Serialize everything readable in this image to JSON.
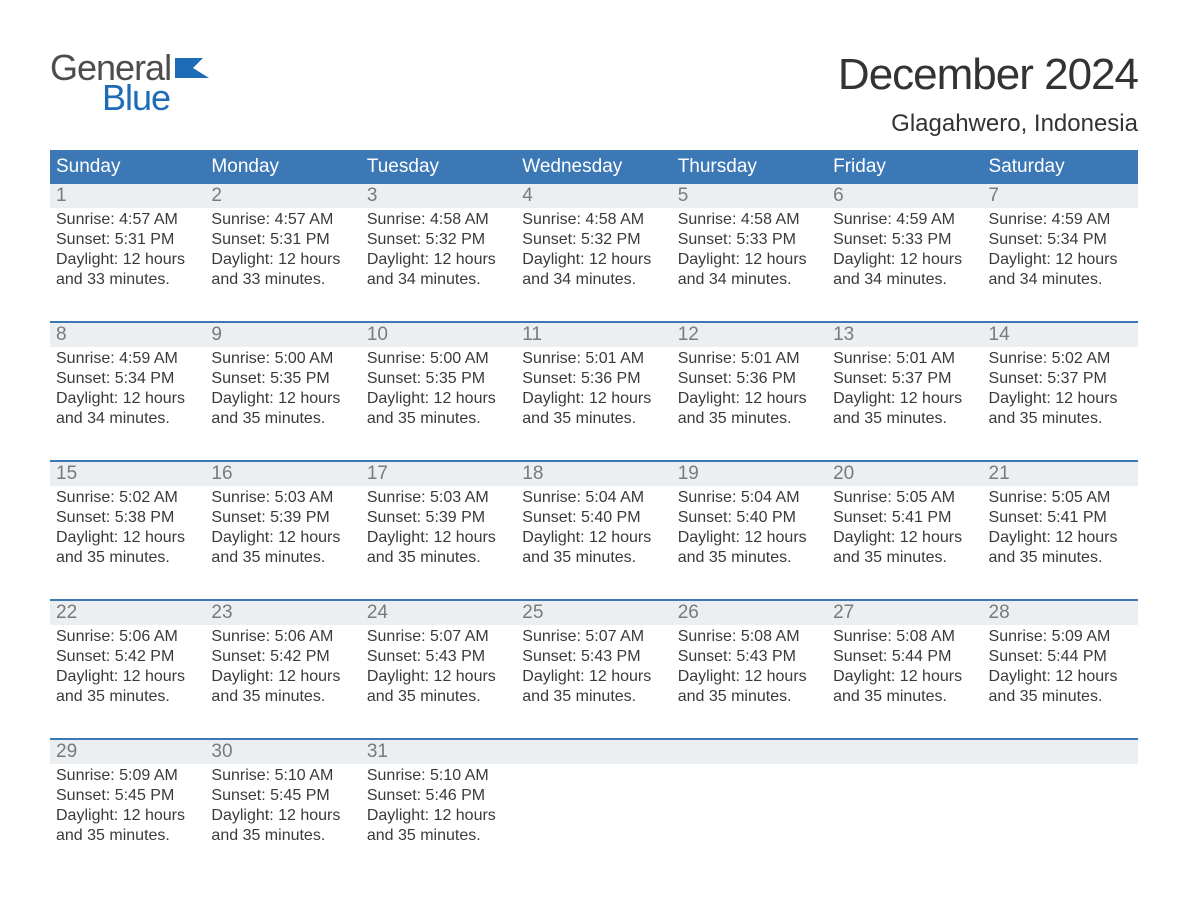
{
  "logo": {
    "text_general": "General",
    "text_blue": "Blue",
    "flag_color": "#1e6bb8",
    "general_color": "#4d4d4d",
    "blue_color": "#1e6bb8"
  },
  "title": "December 2024",
  "location": "Glagahwero, Indonesia",
  "header_bg": "#3b78b5",
  "header_text_color": "#ffffff",
  "daynum_bg": "#eceff1",
  "daynum_color": "#7a7a7a",
  "body_text_color": "#3a3a3a",
  "week_border_color": "#3b78b5",
  "day_names": [
    "Sunday",
    "Monday",
    "Tuesday",
    "Wednesday",
    "Thursday",
    "Friday",
    "Saturday"
  ],
  "weeks": [
    [
      {
        "n": "1",
        "sr": "Sunrise: 4:57 AM",
        "ss": "Sunset: 5:31 PM",
        "dl1": "Daylight: 12 hours",
        "dl2": "and 33 minutes."
      },
      {
        "n": "2",
        "sr": "Sunrise: 4:57 AM",
        "ss": "Sunset: 5:31 PM",
        "dl1": "Daylight: 12 hours",
        "dl2": "and 33 minutes."
      },
      {
        "n": "3",
        "sr": "Sunrise: 4:58 AM",
        "ss": "Sunset: 5:32 PM",
        "dl1": "Daylight: 12 hours",
        "dl2": "and 34 minutes."
      },
      {
        "n": "4",
        "sr": "Sunrise: 4:58 AM",
        "ss": "Sunset: 5:32 PM",
        "dl1": "Daylight: 12 hours",
        "dl2": "and 34 minutes."
      },
      {
        "n": "5",
        "sr": "Sunrise: 4:58 AM",
        "ss": "Sunset: 5:33 PM",
        "dl1": "Daylight: 12 hours",
        "dl2": "and 34 minutes."
      },
      {
        "n": "6",
        "sr": "Sunrise: 4:59 AM",
        "ss": "Sunset: 5:33 PM",
        "dl1": "Daylight: 12 hours",
        "dl2": "and 34 minutes."
      },
      {
        "n": "7",
        "sr": "Sunrise: 4:59 AM",
        "ss": "Sunset: 5:34 PM",
        "dl1": "Daylight: 12 hours",
        "dl2": "and 34 minutes."
      }
    ],
    [
      {
        "n": "8",
        "sr": "Sunrise: 4:59 AM",
        "ss": "Sunset: 5:34 PM",
        "dl1": "Daylight: 12 hours",
        "dl2": "and 34 minutes."
      },
      {
        "n": "9",
        "sr": "Sunrise: 5:00 AM",
        "ss": "Sunset: 5:35 PM",
        "dl1": "Daylight: 12 hours",
        "dl2": "and 35 minutes."
      },
      {
        "n": "10",
        "sr": "Sunrise: 5:00 AM",
        "ss": "Sunset: 5:35 PM",
        "dl1": "Daylight: 12 hours",
        "dl2": "and 35 minutes."
      },
      {
        "n": "11",
        "sr": "Sunrise: 5:01 AM",
        "ss": "Sunset: 5:36 PM",
        "dl1": "Daylight: 12 hours",
        "dl2": "and 35 minutes."
      },
      {
        "n": "12",
        "sr": "Sunrise: 5:01 AM",
        "ss": "Sunset: 5:36 PM",
        "dl1": "Daylight: 12 hours",
        "dl2": "and 35 minutes."
      },
      {
        "n": "13",
        "sr": "Sunrise: 5:01 AM",
        "ss": "Sunset: 5:37 PM",
        "dl1": "Daylight: 12 hours",
        "dl2": "and 35 minutes."
      },
      {
        "n": "14",
        "sr": "Sunrise: 5:02 AM",
        "ss": "Sunset: 5:37 PM",
        "dl1": "Daylight: 12 hours",
        "dl2": "and 35 minutes."
      }
    ],
    [
      {
        "n": "15",
        "sr": "Sunrise: 5:02 AM",
        "ss": "Sunset: 5:38 PM",
        "dl1": "Daylight: 12 hours",
        "dl2": "and 35 minutes."
      },
      {
        "n": "16",
        "sr": "Sunrise: 5:03 AM",
        "ss": "Sunset: 5:39 PM",
        "dl1": "Daylight: 12 hours",
        "dl2": "and 35 minutes."
      },
      {
        "n": "17",
        "sr": "Sunrise: 5:03 AM",
        "ss": "Sunset: 5:39 PM",
        "dl1": "Daylight: 12 hours",
        "dl2": "and 35 minutes."
      },
      {
        "n": "18",
        "sr": "Sunrise: 5:04 AM",
        "ss": "Sunset: 5:40 PM",
        "dl1": "Daylight: 12 hours",
        "dl2": "and 35 minutes."
      },
      {
        "n": "19",
        "sr": "Sunrise: 5:04 AM",
        "ss": "Sunset: 5:40 PM",
        "dl1": "Daylight: 12 hours",
        "dl2": "and 35 minutes."
      },
      {
        "n": "20",
        "sr": "Sunrise: 5:05 AM",
        "ss": "Sunset: 5:41 PM",
        "dl1": "Daylight: 12 hours",
        "dl2": "and 35 minutes."
      },
      {
        "n": "21",
        "sr": "Sunrise: 5:05 AM",
        "ss": "Sunset: 5:41 PM",
        "dl1": "Daylight: 12 hours",
        "dl2": "and 35 minutes."
      }
    ],
    [
      {
        "n": "22",
        "sr": "Sunrise: 5:06 AM",
        "ss": "Sunset: 5:42 PM",
        "dl1": "Daylight: 12 hours",
        "dl2": "and 35 minutes."
      },
      {
        "n": "23",
        "sr": "Sunrise: 5:06 AM",
        "ss": "Sunset: 5:42 PM",
        "dl1": "Daylight: 12 hours",
        "dl2": "and 35 minutes."
      },
      {
        "n": "24",
        "sr": "Sunrise: 5:07 AM",
        "ss": "Sunset: 5:43 PM",
        "dl1": "Daylight: 12 hours",
        "dl2": "and 35 minutes."
      },
      {
        "n": "25",
        "sr": "Sunrise: 5:07 AM",
        "ss": "Sunset: 5:43 PM",
        "dl1": "Daylight: 12 hours",
        "dl2": "and 35 minutes."
      },
      {
        "n": "26",
        "sr": "Sunrise: 5:08 AM",
        "ss": "Sunset: 5:43 PM",
        "dl1": "Daylight: 12 hours",
        "dl2": "and 35 minutes."
      },
      {
        "n": "27",
        "sr": "Sunrise: 5:08 AM",
        "ss": "Sunset: 5:44 PM",
        "dl1": "Daylight: 12 hours",
        "dl2": "and 35 minutes."
      },
      {
        "n": "28",
        "sr": "Sunrise: 5:09 AM",
        "ss": "Sunset: 5:44 PM",
        "dl1": "Daylight: 12 hours",
        "dl2": "and 35 minutes."
      }
    ],
    [
      {
        "n": "29",
        "sr": "Sunrise: 5:09 AM",
        "ss": "Sunset: 5:45 PM",
        "dl1": "Daylight: 12 hours",
        "dl2": "and 35 minutes."
      },
      {
        "n": "30",
        "sr": "Sunrise: 5:10 AM",
        "ss": "Sunset: 5:45 PM",
        "dl1": "Daylight: 12 hours",
        "dl2": "and 35 minutes."
      },
      {
        "n": "31",
        "sr": "Sunrise: 5:10 AM",
        "ss": "Sunset: 5:46 PM",
        "dl1": "Daylight: 12 hours",
        "dl2": "and 35 minutes."
      },
      {
        "empty": true
      },
      {
        "empty": true
      },
      {
        "empty": true
      },
      {
        "empty": true
      }
    ]
  ]
}
